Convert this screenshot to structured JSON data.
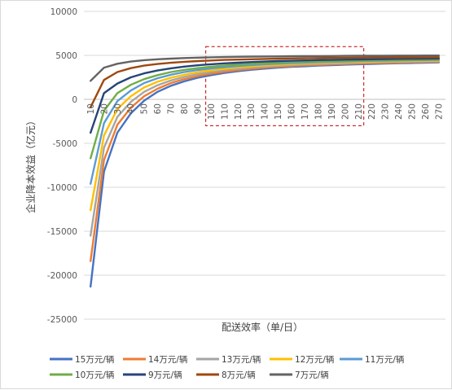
{
  "chart_data": {
    "type": "line",
    "xlabel": "配送效率（单/日）",
    "ylabel": "企业降本效益（亿元）",
    "ylim": [
      -25000,
      10000
    ],
    "yticks": [
      10000,
      5000,
      0,
      -5000,
      -10000,
      -15000,
      -20000,
      -25000
    ],
    "x": [
      10,
      20,
      30,
      40,
      50,
      60,
      70,
      80,
      90,
      100,
      110,
      120,
      130,
      140,
      150,
      160,
      170,
      180,
      190,
      200,
      210,
      220,
      230,
      240,
      250,
      260,
      270
    ],
    "grid": "horizontal",
    "legend_position": "bottom",
    "highlight_box": {
      "x_from": 100,
      "x_to": 210,
      "y_from": -3000,
      "y_to": 6000
    },
    "series": [
      {
        "name": "15万元/辆",
        "color": "#4472c4",
        "values": [
          -21300,
          -8200,
          -3800,
          -1600,
          -150,
          850,
          1550,
          2050,
          2450,
          2750,
          3000,
          3200,
          3360,
          3490,
          3600,
          3690,
          3760,
          3830,
          3890,
          3940,
          3990,
          4030,
          4070,
          4100,
          4130,
          4160,
          4190
        ]
      },
      {
        "name": "14万元/辆",
        "color": "#ed7d31",
        "values": [
          -18400,
          -6900,
          -2900,
          -950,
          350,
          1200,
          1850,
          2300,
          2650,
          2930,
          3150,
          3330,
          3480,
          3600,
          3700,
          3790,
          3860,
          3920,
          3980,
          4030,
          4070,
          4110,
          4140,
          4170,
          4200,
          4230,
          4250
        ]
      },
      {
        "name": "13万元/辆",
        "color": "#a5a5a5",
        "values": [
          -15500,
          -5500,
          -2000,
          -300,
          850,
          1600,
          2150,
          2550,
          2870,
          3120,
          3320,
          3480,
          3620,
          3730,
          3820,
          3900,
          3970,
          4030,
          4080,
          4120,
          4160,
          4200,
          4230,
          4260,
          4290,
          4310,
          4330
        ]
      },
      {
        "name": "12万元/辆",
        "color": "#ffc000",
        "values": [
          -12600,
          -4100,
          -1100,
          350,
          1350,
          2000,
          2450,
          2800,
          3080,
          3300,
          3480,
          3630,
          3750,
          3850,
          3940,
          4010,
          4080,
          4130,
          4180,
          4220,
          4260,
          4290,
          4320,
          4350,
          4370,
          4390,
          4410
        ]
      },
      {
        "name": "11万元/辆",
        "color": "#5b9bd5",
        "values": [
          -9600,
          -2700,
          -200,
          1000,
          1850,
          2400,
          2800,
          3100,
          3330,
          3520,
          3670,
          3800,
          3900,
          3990,
          4060,
          4130,
          4180,
          4230,
          4270,
          4310,
          4340,
          4370,
          4400,
          4420,
          4440,
          4460,
          4480
        ]
      },
      {
        "name": "10万元/辆",
        "color": "#70ad47",
        "values": [
          -6700,
          -1300,
          700,
          1650,
          2300,
          2750,
          3100,
          3350,
          3550,
          3710,
          3840,
          3950,
          4040,
          4120,
          4180,
          4240,
          4280,
          4320,
          4360,
          4390,
          4420,
          4450,
          4470,
          4490,
          4510,
          4530,
          4550
        ]
      },
      {
        "name": "9万元/辆",
        "color": "#264478",
        "values": [
          -3800,
          700,
          1800,
          2500,
          2950,
          3280,
          3530,
          3720,
          3870,
          3990,
          4090,
          4170,
          4240,
          4300,
          4350,
          4390,
          4430,
          4460,
          4490,
          4520,
          4540,
          4560,
          4580,
          4600,
          4610,
          4620,
          4640
        ]
      },
      {
        "name": "8万元/辆",
        "color": "#9e480e",
        "values": [
          -900,
          2200,
          3100,
          3550,
          3830,
          4020,
          4160,
          4270,
          4350,
          4420,
          4480,
          4520,
          4560,
          4590,
          4620,
          4650,
          4670,
          4690,
          4710,
          4720,
          4740,
          4750,
          4760,
          4770,
          4780,
          4790,
          4800
        ]
      },
      {
        "name": "7万元/辆",
        "color": "#636363",
        "values": [
          2100,
          3600,
          4050,
          4300,
          4450,
          4560,
          4630,
          4690,
          4740,
          4780,
          4810,
          4830,
          4850,
          4870,
          4880,
          4900,
          4910,
          4920,
          4930,
          4940,
          4950,
          4960,
          4960,
          4970,
          4970,
          4980,
          4980
        ]
      }
    ]
  }
}
